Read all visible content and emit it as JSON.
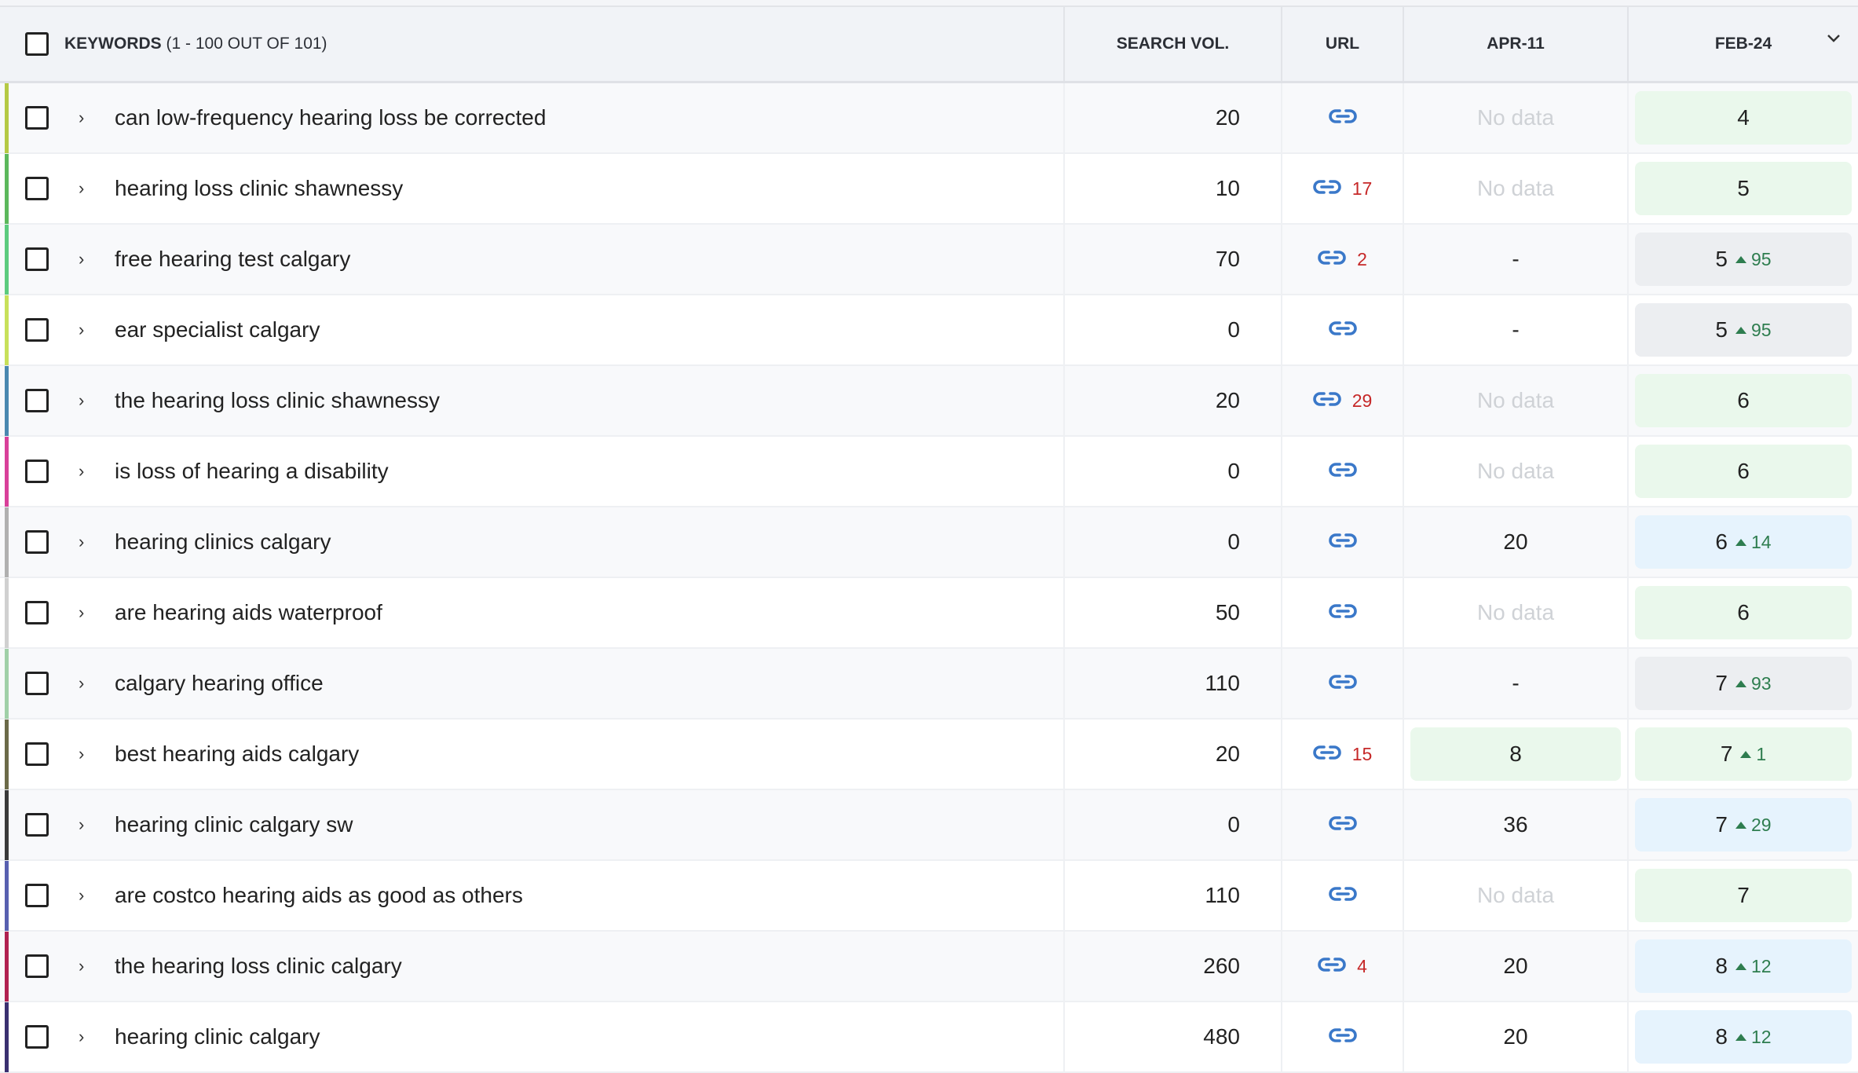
{
  "header": {
    "keywords_label": "KEYWORDS",
    "keywords_count": "(1 - 100 OUT OF 101)",
    "search_vol": "SEARCH VOL.",
    "url": "URL",
    "apr": "APR-11",
    "feb": "FEB-24"
  },
  "colors": {
    "green_cell": "#eaf8ec",
    "gray_cell": "#eceef1",
    "blue_cell": "#e6f3fd",
    "link": "#3a78c9",
    "url_count": "#c62828",
    "change": "#2e7d4f"
  },
  "rows": [
    {
      "keyword": "can low-frequency hearing loss be corrected",
      "volume": "20",
      "url_count": "",
      "apr": "No data",
      "apr_style": "nodata",
      "feb": "4",
      "feb_change": "",
      "feb_style": "green",
      "tag_color": "#b5c944"
    },
    {
      "keyword": "hearing loss clinic shawnessy",
      "volume": "10",
      "url_count": "17",
      "apr": "No data",
      "apr_style": "nodata",
      "feb": "5",
      "feb_change": "",
      "feb_style": "green",
      "tag_color": "#5cb85c"
    },
    {
      "keyword": "free hearing test calgary",
      "volume": "70",
      "url_count": "2",
      "apr": "-",
      "apr_style": "plain",
      "feb": "5",
      "feb_change": "95",
      "feb_style": "gray",
      "tag_color": "#5ccb7e"
    },
    {
      "keyword": "ear specialist calgary",
      "volume": "0",
      "url_count": "",
      "apr": "-",
      "apr_style": "plain",
      "feb": "5",
      "feb_change": "95",
      "feb_style": "gray",
      "tag_color": "#c8e05a"
    },
    {
      "keyword": "the hearing loss clinic shawnessy",
      "volume": "20",
      "url_count": "29",
      "apr": "No data",
      "apr_style": "nodata",
      "feb": "6",
      "feb_change": "",
      "feb_style": "green",
      "tag_color": "#4a88b0"
    },
    {
      "keyword": "is loss of hearing a disability",
      "volume": "0",
      "url_count": "",
      "apr": "No data",
      "apr_style": "nodata",
      "feb": "6",
      "feb_change": "",
      "feb_style": "green",
      "tag_color": "#d9409a"
    },
    {
      "keyword": "hearing clinics calgary",
      "volume": "0",
      "url_count": "",
      "apr": "20",
      "apr_style": "plain",
      "feb": "6",
      "feb_change": "14",
      "feb_style": "blue",
      "tag_color": "#b0b0b0"
    },
    {
      "keyword": "are hearing aids waterproof",
      "volume": "50",
      "url_count": "",
      "apr": "No data",
      "apr_style": "nodata",
      "feb": "6",
      "feb_change": "",
      "feb_style": "green",
      "tag_color": "#d0d0d0"
    },
    {
      "keyword": "calgary hearing office",
      "volume": "110",
      "url_count": "",
      "apr": "-",
      "apr_style": "plain",
      "feb": "7",
      "feb_change": "93",
      "feb_style": "gray",
      "tag_color": "#a0d0a8"
    },
    {
      "keyword": "best hearing aids calgary",
      "volume": "20",
      "url_count": "15",
      "apr": "8",
      "apr_style": "green",
      "feb": "7",
      "feb_change": "1",
      "feb_style": "green",
      "tag_color": "#6b6a48"
    },
    {
      "keyword": "hearing clinic calgary sw",
      "volume": "0",
      "url_count": "",
      "apr": "36",
      "apr_style": "plain",
      "feb": "7",
      "feb_change": "29",
      "feb_style": "blue",
      "tag_color": "#3a3a3a"
    },
    {
      "keyword": "are costco hearing aids as good as others",
      "volume": "110",
      "url_count": "",
      "apr": "No data",
      "apr_style": "nodata",
      "feb": "7",
      "feb_change": "",
      "feb_style": "green",
      "tag_color": "#5860b0"
    },
    {
      "keyword": "the hearing loss clinic calgary",
      "volume": "260",
      "url_count": "4",
      "apr": "20",
      "apr_style": "plain",
      "feb": "8",
      "feb_change": "12",
      "feb_style": "blue",
      "tag_color": "#b02050"
    },
    {
      "keyword": "hearing clinic calgary",
      "volume": "480",
      "url_count": "",
      "apr": "20",
      "apr_style": "plain",
      "feb": "8",
      "feb_change": "12",
      "feb_style": "blue",
      "tag_color": "#3a3070"
    }
  ]
}
